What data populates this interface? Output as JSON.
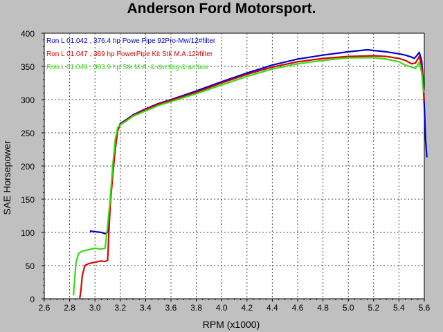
{
  "chart_data": {
    "type": "line",
    "title": "Anderson Ford Motorsport.",
    "xlabel": "RPM (x1000)",
    "ylabel": "SAE Horsepower",
    "xlim": [
      2.6,
      5.6
    ],
    "ylim": [
      0,
      400
    ],
    "xticks": [
      "2.6",
      "2.8",
      "3.0",
      "3.2",
      "3.4",
      "3.6",
      "3.8",
      "4.0",
      "4.2",
      "4.4",
      "4.6",
      "4.8",
      "5.0",
      "5.2",
      "5.4",
      "5.6"
    ],
    "yticks": [
      "0",
      "50",
      "100",
      "150",
      "200",
      "250",
      "300",
      "350",
      "400"
    ],
    "grid": true,
    "legend_position": "top-left",
    "series": [
      {
        "name": "Ron L 01.042 , 376.4 hp Powe Pipe 92Pro-Mw/12#filter",
        "color": "#0000cc",
        "x": [
          2.96,
          3.0,
          3.05,
          3.08,
          3.1,
          3.11,
          3.12,
          3.14,
          3.16,
          3.18,
          3.2,
          3.25,
          3.3,
          3.4,
          3.5,
          3.6,
          3.8,
          4.0,
          4.2,
          4.4,
          4.6,
          4.8,
          5.0,
          5.1,
          5.15,
          5.2,
          5.3,
          5.4,
          5.45,
          5.5,
          5.52,
          5.54,
          5.56,
          5.58,
          5.59,
          5.6,
          5.61,
          5.62
        ],
        "y": [
          102,
          101,
          100,
          98,
          100,
          118,
          150,
          190,
          228,
          255,
          264,
          270,
          277,
          286,
          294,
          300,
          313,
          327,
          340,
          352,
          361,
          367,
          372,
          374,
          375,
          374,
          372,
          369,
          367,
          364,
          362,
          366,
          371,
          358,
          330,
          290,
          240,
          213
        ]
      },
      {
        "name": "Ron L 01.047 , 369 hp PowerPipe Kit Stk M.A.12#filter",
        "color": "#dd0000",
        "x": [
          2.88,
          2.89,
          2.9,
          2.92,
          2.95,
          3.0,
          3.05,
          3.08,
          3.1,
          3.11,
          3.12,
          3.14,
          3.16,
          3.18,
          3.2,
          3.25,
          3.3,
          3.4,
          3.5,
          3.6,
          3.8,
          4.0,
          4.2,
          4.4,
          4.6,
          4.8,
          5.0,
          5.2,
          5.3,
          5.4,
          5.45,
          5.5,
          5.53,
          5.56,
          5.58,
          5.59,
          5.6
        ],
        "y": [
          0,
          15,
          35,
          50,
          53,
          55,
          57,
          56,
          58,
          100,
          140,
          185,
          225,
          253,
          263,
          269,
          276,
          285,
          293,
          299,
          311,
          325,
          338,
          349,
          357,
          362,
          365,
          366,
          365,
          362,
          359,
          354,
          355,
          365,
          350,
          320,
          298
        ]
      },
      {
        "name": "Ron L 01.049 , 363.9 hp Stk M.A. & ducting & air box",
        "color": "#33dd11",
        "x": [
          2.83,
          2.84,
          2.85,
          2.87,
          2.9,
          2.95,
          3.0,
          3.05,
          3.08,
          3.1,
          3.12,
          3.14,
          3.16,
          3.18,
          3.2,
          3.25,
          3.3,
          3.4,
          3.5,
          3.6,
          3.8,
          4.0,
          4.2,
          4.4,
          4.6,
          4.8,
          5.0,
          5.2,
          5.3,
          5.4,
          5.45,
          5.5,
          5.53,
          5.56,
          5.58,
          5.59,
          5.6
        ],
        "y": [
          5,
          30,
          55,
          68,
          72,
          74,
          76,
          75,
          76,
          110,
          150,
          200,
          240,
          258,
          262,
          268,
          275,
          283,
          291,
          297,
          309,
          322,
          335,
          346,
          354,
          359,
          363,
          363,
          361,
          357,
          352,
          349,
          347,
          356,
          340,
          318,
          310
        ]
      }
    ]
  }
}
